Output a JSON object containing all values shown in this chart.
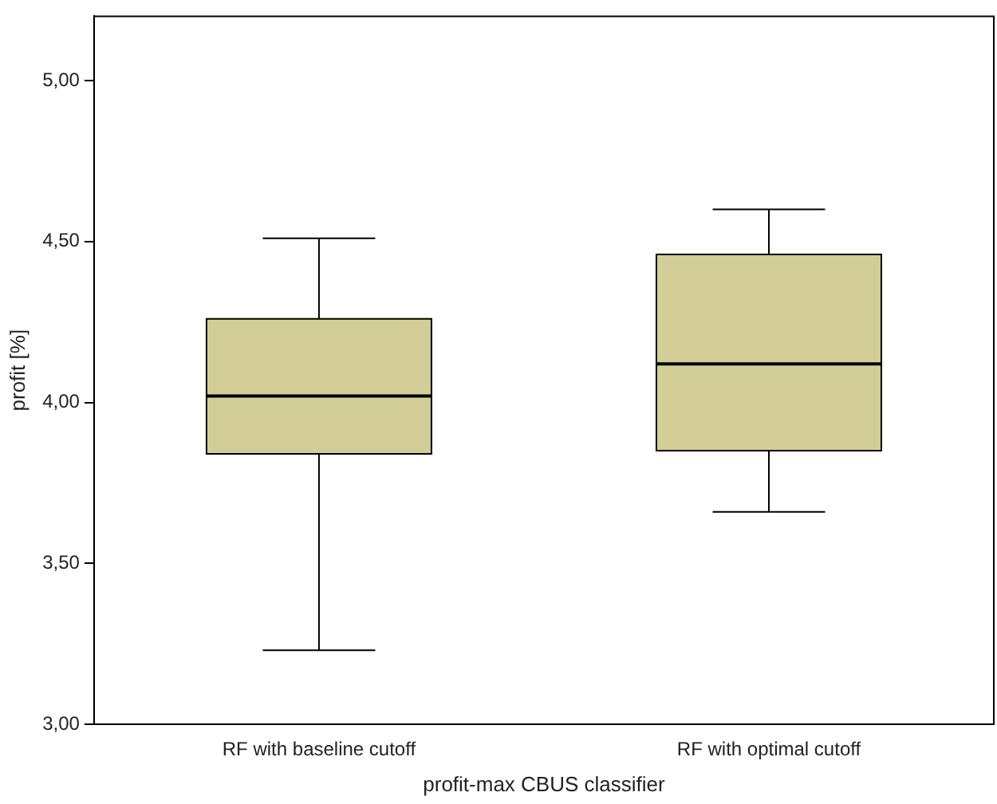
{
  "chart_data": {
    "type": "box",
    "xlabel": "profit-max CBUS classifier",
    "ylabel": "profit [%]",
    "categories": [
      "RF with baseline cutoff",
      "RF with optimal cutoff"
    ],
    "boxes": [
      {
        "low": 3.23,
        "q1": 3.84,
        "median": 4.02,
        "q3": 4.26,
        "high": 4.51
      },
      {
        "low": 3.66,
        "q1": 3.85,
        "median": 4.12,
        "q3": 4.46,
        "high": 4.6
      }
    ],
    "color": "#d3ce97",
    "ylim": [
      3,
      5.2
    ],
    "yticks": [
      {
        "value": 3,
        "label": "3,00"
      },
      {
        "value": 3.5,
        "label": "3,50"
      },
      {
        "value": 4,
        "label": "4,00"
      },
      {
        "value": 4.5,
        "label": "4,50"
      },
      {
        "value": 5,
        "label": "5,00"
      }
    ],
    "grid": false,
    "legend": false
  }
}
